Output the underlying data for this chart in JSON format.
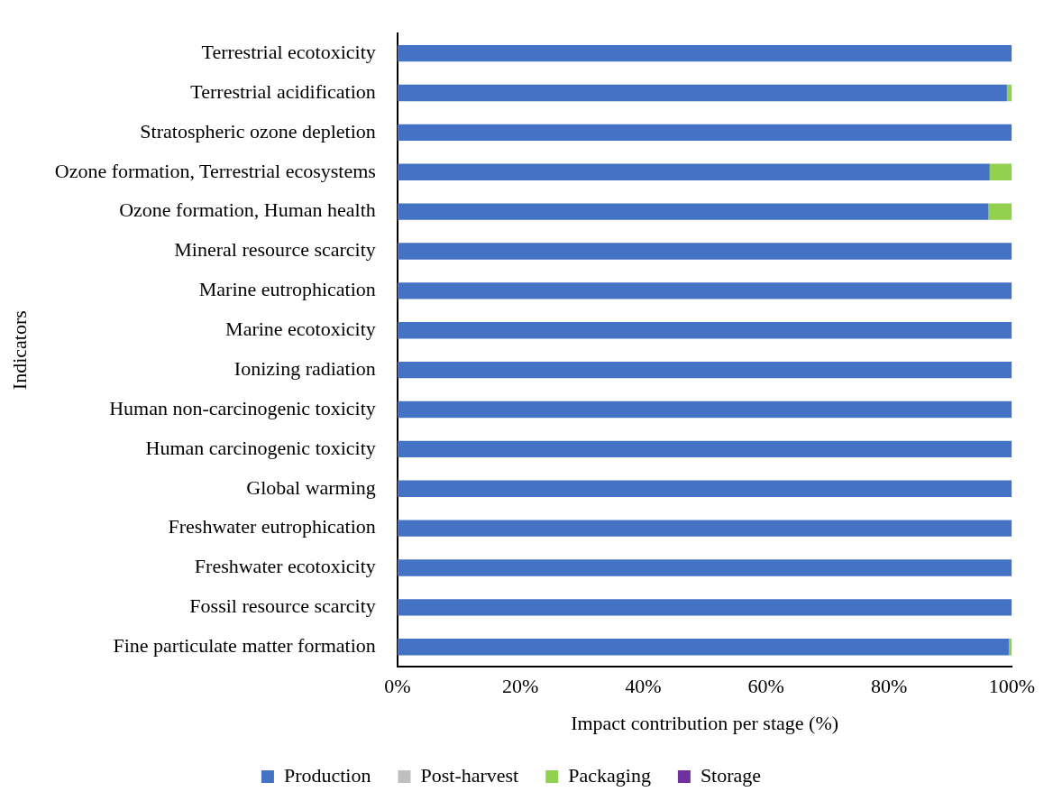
{
  "chart_data": {
    "type": "bar",
    "orientation": "horizontal",
    "stacked": true,
    "xlabel": "Impact contribution per stage (%)",
    "ylabel": "Indicators",
    "categories": [
      "Terrestrial ecotoxicity",
      "Terrestrial acidification",
      "Stratospheric ozone depletion",
      "Ozone formation, Terrestrial ecosystems",
      "Ozone formation, Human health",
      "Mineral resource scarcity",
      "Marine eutrophication",
      "Marine ecotoxicity",
      "Ionizing radiation",
      "Human non-carcinogenic toxicity",
      "Human carcinogenic toxicity",
      "Global warming",
      "Freshwater eutrophication",
      "Freshwater ecotoxicity",
      "Fossil resource scarcity",
      "Fine particulate matter formation"
    ],
    "series": [
      {
        "name": "Production",
        "color": "#4472c4",
        "values": [
          100,
          99.2,
          100,
          96.4,
          96.2,
          100,
          100,
          100,
          100,
          100,
          100,
          100,
          100,
          100,
          100,
          99.5
        ]
      },
      {
        "name": "Post-harvest",
        "color": "#bfbfbf",
        "values": [
          0,
          0,
          0,
          0,
          0,
          0,
          0,
          0,
          0,
          0,
          0,
          0,
          0,
          0,
          0,
          0
        ]
      },
      {
        "name": "Packaging",
        "color": "#92d050",
        "values": [
          0,
          0.8,
          0,
          3.6,
          3.8,
          0,
          0,
          0,
          0,
          0,
          0,
          0,
          0,
          0,
          0,
          0.5
        ]
      },
      {
        "name": "Storage",
        "color": "#7030a0",
        "values": [
          0,
          0,
          0,
          0,
          0,
          0,
          0,
          0,
          0,
          0,
          0,
          0,
          0,
          0,
          0,
          0
        ]
      }
    ],
    "xlim": [
      0,
      100
    ],
    "xticks": [
      {
        "value": 0,
        "label": "0%"
      },
      {
        "value": 20,
        "label": "20%"
      },
      {
        "value": 40,
        "label": "40%"
      },
      {
        "value": 60,
        "label": "60%"
      },
      {
        "value": 80,
        "label": "80%"
      },
      {
        "value": 100,
        "label": "100%"
      }
    ],
    "legend": "bottom"
  }
}
